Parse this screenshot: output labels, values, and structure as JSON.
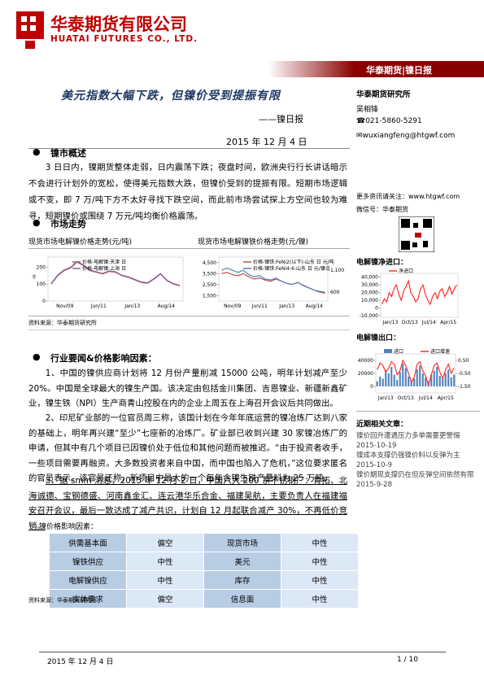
{
  "header": {
    "company": "华泰期货有限公司",
    "company_en": "HUATAI FUTURES CO., LTD.",
    "band": "华泰期货|镍日报"
  },
  "report": {
    "title": "美元指数大幅下跌，但镍价受到提振有限",
    "subtitle": "——镍日报",
    "date": "2015 年 12 月 4 日"
  },
  "sidebar": {
    "institute": "华泰期货研究所",
    "author": "吴相锋",
    "phone": "☎021-5860-5291",
    "email": "✉wuxiangfeng@htgwf.com",
    "website": "更多资讯请关注：www.htgwf.com",
    "wechat": "微信号：华泰期货",
    "chart3_title": "电解镍净进口：",
    "chart4_title": "电解镍出口：",
    "articles_title": "近期相关文章：",
    "articles": [
      {
        "title": "镍价回升遭遇压力多单需要更警惕",
        "date": "2015-10-19"
      },
      {
        "title": "镍成本支撑仍强镍价料以反弹为主",
        "date": "2015-10-9"
      },
      {
        "title": "镍价期现支撑仍在但反弹空间依然有限",
        "date": "2015-9-28"
      }
    ]
  },
  "overview": {
    "heading": "镍市概述",
    "text": "3 日日内，镍期货整体走弱，日内震荡下跌；夜盘时间，欧洲央行行长讲话暗示不会进行计划外的宽松，使得美元指数大跌，但镍价受到的提振有限。短期市场逻辑或不变，即 7 万/吨下方不太好寻找下跌空间，而此前市场尝试探上方空间也较为难寻，短期镍价或围绕 7 万元/吨均衡价格震荡。"
  },
  "market": {
    "heading": "市场走势",
    "caption1": "现货市场电解镍价格走势(元/吨)",
    "caption2": "现货市场电解镍铁价格走势(元/镍)",
    "source": "资料来源：华泰期货研究所"
  },
  "news": {
    "heading": "行业要闻&价格影响因素：",
    "items": [
      "1、中国的镍供应商计划将 12 月份产量削减 15000 公吨，明年计划减产至少 20%。中国是全球最大的镍生产国。该决定由包括金川集团、吉恩镍业、新疆新鑫矿业，镍生铁（NPI）生产商青山控股在内的企业上周五在上海召开会议后共同做出。",
      "2、印尼矿业部的一位官员周三称，该国计划在今年年底运营的镍冶炼厂达到八家的基础上，明年再兴建“至少”七座新的冶炼厂。矿业部已收到兴建 30 家镍冶炼厂的申请，但其中有几个项目已因镍价处于低位和其他问题而被推迟。“由于投资者收手，一些项目需要再融资。大多数投资者来自中国，而中国也陷入了危机，”这位要求匿名的官员表示。该官员还称，新项目中最大的一个每年含镍生铁产量料为 25 万吨。",
      "3、据 smm 消息，2015 年 12 月 2 日，中国六大 200 系不锈钢厂：青拓、北海诚德、宝钢德盛、河南鑫金汇、连云港华乐合金、福建吴航，主要负责人在福建福安召开会议，最后一致达成了减产共识，计划自 12 月起联合减产 30%，不再低价竞销。"
    ]
  },
  "table": {
    "caption": "镍价格影响因素：",
    "rows": [
      [
        "供需基本面",
        "偏空",
        "现货市场",
        "中性"
      ],
      [
        "镍铁供应",
        "中性",
        "美元",
        "中性"
      ],
      [
        "电解镍供应",
        "中性",
        "库存",
        "中性"
      ],
      [
        "实体需求",
        "偏空",
        "信息面",
        "中性"
      ]
    ],
    "source": "资料来源：华泰期货研究所"
  },
  "footer": {
    "date": "2015 年 12 月 4 日",
    "page": "1 / 10"
  },
  "charts": [
    {
      "type": "line",
      "axis_label": "千",
      "ylim": [
        0,
        260
      ],
      "yticks": [
        0,
        100,
        200
      ],
      "xlabels": [
        "Nov/09",
        "Jun/11",
        "Jan/13",
        "Aug/14"
      ],
      "series": [
        {
          "name": "价格-电解镍:天津 日",
          "color": "#c0504d",
          "values": [
            100,
            150,
            180,
            195,
            230,
            210,
            180,
            170,
            160,
            175,
            170,
            150,
            140,
            125,
            110,
            105,
            130,
            160,
            120,
            100,
            90
          ]
        },
        {
          "name": "价格-电解镍:上海 日",
          "color": "#8064a2",
          "values": [
            103,
            153,
            184,
            199,
            234,
            214,
            184,
            173,
            163,
            178,
            173,
            153,
            143,
            128,
            113,
            108,
            133,
            163,
            123,
            103,
            93
          ]
        }
      ]
    },
    {
      "type": "line",
      "ylim": [
        1000,
        5000
      ],
      "yticks": [
        {
          "value": 1500,
          "label": "1,500"
        },
        {
          "value": 2500,
          "label": "2,500"
        },
        {
          "value": 3500,
          "label": "3,500"
        },
        {
          "value": 4500,
          "label": "4,500"
        }
      ],
      "y2lim": [
        400,
        1400
      ],
      "y2ticks": [
        {
          "value": 600,
          "label": "600"
        },
        {
          "value": 1100,
          "label": "1,100"
        }
      ],
      "xlabels": [
        "Nov/09",
        "Jun/11",
        "Jan/13",
        "Aug/14"
      ],
      "series": [
        {
          "name": "价格-镍铁:FeNi2(以下)-山东 日 元/吨",
          "color": "#c0504d",
          "values": [
            3500,
            3600,
            3400,
            3300,
            3500,
            3200,
            3000,
            3100,
            2900,
            2800,
            3000,
            2800,
            2600,
            2500,
            2700,
            2400,
            2200,
            2000,
            1800,
            1700
          ]
        },
        {
          "name": "价格-镍铁:FeNi4-6:山东 日 元/镍点",
          "color": "#4f81bd",
          "axis": "y2",
          "values": [
            1100,
            1150,
            1100,
            1050,
            1100,
            1000,
            950,
            980,
            900,
            880,
            920,
            850,
            800,
            780,
            820,
            760,
            700,
            650,
            620,
            600
          ]
        }
      ]
    },
    {
      "type": "line",
      "ylim": [
        -12000,
        45000
      ],
      "yticks": [
        {
          "value": 40000,
          "label": "40,000"
        },
        {
          "value": 30000,
          "label": "30,000"
        },
        {
          "value": 20000,
          "label": "20,000"
        },
        {
          "value": 10000,
          "label": "10,000"
        },
        0,
        {
          "value": -10000,
          "label": "-10,000"
        }
      ],
      "xlabels": [
        "Jan/13",
        "Oct/13",
        "Jul/14",
        "Apr/15"
      ],
      "series": [
        {
          "name": "净进口",
          "color": "#ff3030",
          "values": [
            5000,
            12000,
            8000,
            20000,
            15000,
            25000,
            30000,
            18000,
            10000,
            22000,
            28000,
            35000,
            20000,
            15000,
            8000,
            12000,
            25000,
            30000,
            18000,
            10000,
            5000,
            15000,
            20000,
            12000,
            22000,
            25000,
            15000,
            20000,
            28000,
            18000,
            25000,
            30000
          ]
        }
      ]
    },
    {
      "type": "bar_line",
      "ylim": [
        -10000,
        50000
      ],
      "yticks": [
        0,
        20000,
        40000
      ],
      "y2lim": [
        -2,
        1
      ],
      "y2ticks": [
        {
          "value": 0.5,
          "label": "0.50"
        },
        {
          "value": -0.5,
          "label": "-0.50"
        },
        {
          "value": -1.5,
          "label": "-1.50"
        }
      ],
      "xlabels": [
        "Jan/13",
        "Oct/13",
        "Jul/14",
        "Apr/15"
      ],
      "series": [
        {
          "name": "进口",
          "color": "#4f81bd",
          "kind": "bar",
          "values": [
            8000,
            15000,
            12000,
            25000,
            20000,
            30000,
            18000,
            10000,
            22000,
            35000,
            28000,
            15000,
            9000,
            12000,
            26000,
            32000,
            20000,
            14000,
            8000,
            18000,
            24000,
            30000,
            16000,
            12000,
            20000,
            26000,
            14000,
            18000
          ]
        },
        {
          "name": "进口增速",
          "color": "#ff3030",
          "axis": "y2",
          "kind": "line",
          "values": [
            -0.2,
            0.3,
            0.1,
            -0.4,
            -0.1,
            0.4,
            0.2,
            -0.6,
            -0.3,
            0.5,
            0.1,
            -0.5,
            -1.2,
            -0.8,
            0.2,
            0.4,
            -0.3,
            -0.7,
            -1.4,
            -0.6,
            0.1,
            0.3,
            -0.4,
            -0.9,
            -0.2,
            0.2,
            -0.5,
            -0.1
          ]
        }
      ]
    }
  ]
}
